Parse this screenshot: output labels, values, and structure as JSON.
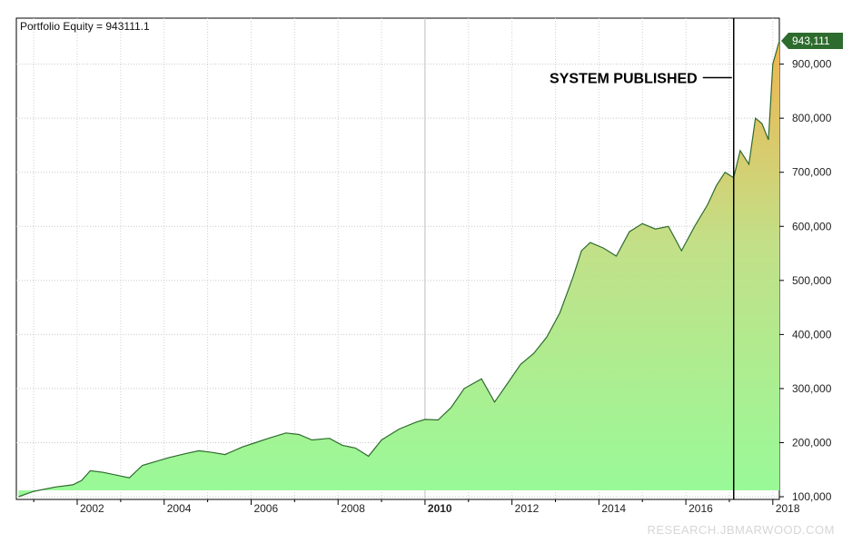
{
  "chart_data": {
    "type": "area",
    "title": "Portfolio Equity = 943111.1",
    "xlabel": "",
    "ylabel": "",
    "x_ticks": [
      "2002",
      "2004",
      "2006",
      "2008",
      "2010",
      "2012",
      "2014",
      "2016",
      "2018"
    ],
    "x_range": [
      2000.6,
      2018.15
    ],
    "y_ticks": [
      "100,000",
      "200,000",
      "300,000",
      "400,000",
      "500,000",
      "600,000",
      "700,000",
      "800,000",
      "900,000"
    ],
    "ylim": [
      95000,
      985000
    ],
    "grid": true,
    "last_value_label": "943,111",
    "last_value": 943111,
    "annotation": {
      "text": "SYSTEM PUBLISHED",
      "x": 2017.1
    },
    "colors": {
      "fill_bottom": "#98fa98",
      "fill_top": "#f0b450",
      "line": "#2e6b2e",
      "marker": "#2e6b2e",
      "vline": "#000000"
    },
    "x": [
      2000.65,
      2001.0,
      2001.5,
      2001.9,
      2002.1,
      2002.3,
      2002.6,
      2002.9,
      2003.2,
      2003.5,
      2003.8,
      2004.1,
      2004.5,
      2004.8,
      2005.1,
      2005.4,
      2005.8,
      2006.1,
      2006.4,
      2006.8,
      2007.1,
      2007.4,
      2007.8,
      2008.1,
      2008.4,
      2008.7,
      2009.0,
      2009.4,
      2009.8,
      2010.0,
      2010.3,
      2010.6,
      2010.9,
      2011.3,
      2011.6,
      2011.9,
      2012.2,
      2012.5,
      2012.8,
      2013.1,
      2013.4,
      2013.6,
      2013.8,
      2014.1,
      2014.4,
      2014.7,
      2015.0,
      2015.3,
      2015.6,
      2015.9,
      2016.2,
      2016.5,
      2016.7,
      2016.9,
      2017.1,
      2017.25,
      2017.45,
      2017.6,
      2017.75,
      2017.9,
      2018.0,
      2018.15
    ],
    "values": [
      100000,
      110000,
      118000,
      122000,
      130000,
      148000,
      145000,
      140000,
      135000,
      158000,
      165000,
      172000,
      180000,
      185000,
      182000,
      178000,
      192000,
      200000,
      208000,
      218000,
      215000,
      205000,
      208000,
      195000,
      190000,
      175000,
      205000,
      225000,
      238000,
      243000,
      242000,
      265000,
      300000,
      318000,
      275000,
      310000,
      345000,
      365000,
      395000,
      440000,
      505000,
      555000,
      570000,
      560000,
      545000,
      590000,
      605000,
      595000,
      600000,
      555000,
      600000,
      640000,
      675000,
      700000,
      690000,
      740000,
      715000,
      800000,
      790000,
      760000,
      900000,
      943111
    ]
  },
  "watermark": "RESEARCH.JBMARWOOD.COM"
}
